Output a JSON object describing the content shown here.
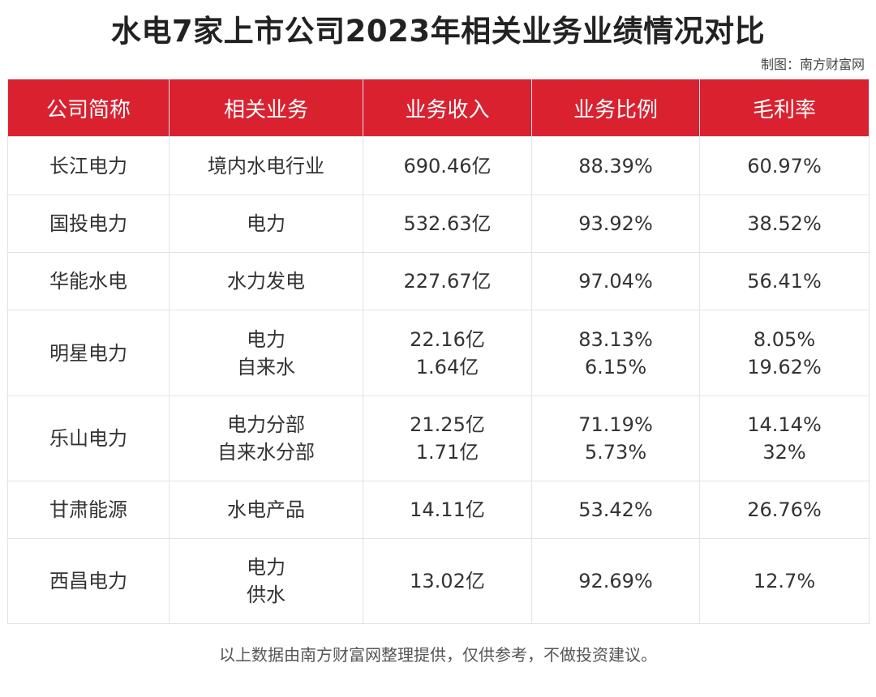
{
  "title": "水电7家上市公司2023年相关业务业绩情况对比",
  "source": "制图：南方财富网",
  "footer": "以上数据由南方财富网整理提供，仅供参考，不做投资建议。",
  "colors": {
    "header_bg": "#d9212f",
    "header_text": "#ffffff",
    "border": "#dfe3ee"
  },
  "chart_data": {
    "type": "table",
    "columns": [
      "公司简称",
      "相关业务",
      "业务收入",
      "业务比例",
      "毛利率"
    ],
    "rows": [
      {
        "company": "长江电力",
        "business": [
          "境内水电行业"
        ],
        "revenue": [
          "690.46亿"
        ],
        "ratio": [
          "88.39%"
        ],
        "margin": [
          "60.97%"
        ]
      },
      {
        "company": "国投电力",
        "business": [
          "电力"
        ],
        "revenue": [
          "532.63亿"
        ],
        "ratio": [
          "93.92%"
        ],
        "margin": [
          "38.52%"
        ]
      },
      {
        "company": "华能水电",
        "business": [
          "水力发电"
        ],
        "revenue": [
          "227.67亿"
        ],
        "ratio": [
          "97.04%"
        ],
        "margin": [
          "56.41%"
        ]
      },
      {
        "company": "明星电力",
        "business": [
          "电力",
          "自来水"
        ],
        "revenue": [
          "22.16亿",
          "1.64亿"
        ],
        "ratio": [
          "83.13%",
          "6.15%"
        ],
        "margin": [
          "8.05%",
          "19.62%"
        ]
      },
      {
        "company": "乐山电力",
        "business": [
          "电力分部",
          "自来水分部"
        ],
        "revenue": [
          "21.25亿",
          "1.71亿"
        ],
        "ratio": [
          "71.19%",
          "5.73%"
        ],
        "margin": [
          "14.14%",
          "32%"
        ]
      },
      {
        "company": "甘肃能源",
        "business": [
          "水电产品"
        ],
        "revenue": [
          "14.11亿"
        ],
        "ratio": [
          "53.42%"
        ],
        "margin": [
          "26.76%"
        ]
      },
      {
        "company": "西昌电力",
        "business": [
          "电力",
          "供水"
        ],
        "revenue": [
          "13.02亿"
        ],
        "ratio": [
          "92.69%"
        ],
        "margin": [
          "12.7%"
        ]
      }
    ]
  }
}
